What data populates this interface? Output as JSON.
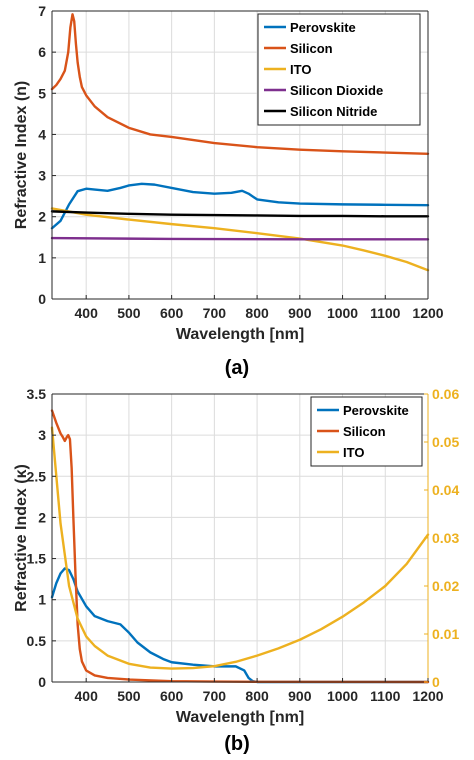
{
  "chart_data": [
    {
      "panel_label": "(a)",
      "type": "line",
      "xlabel": "Wavelength [nm]",
      "ylabel": "Refractive Index (n)",
      "xlim": [
        320,
        1200
      ],
      "ylim": [
        0,
        7
      ],
      "xticks": [
        "400",
        "500",
        "600",
        "700",
        "800",
        "900",
        "1000",
        "1100",
        "1200"
      ],
      "yticks": [
        "0",
        "1",
        "2",
        "3",
        "4",
        "5",
        "6",
        "7"
      ],
      "grid": true,
      "legend_position": "top-right",
      "series": [
        {
          "name": "Perovskite",
          "color": "#0072BD",
          "x": [
            320,
            340,
            360,
            380,
            400,
            420,
            450,
            480,
            500,
            530,
            560,
            600,
            650,
            700,
            740,
            765,
            780,
            800,
            850,
            900,
            1000,
            1100,
            1200
          ],
          "y": [
            1.72,
            1.9,
            2.3,
            2.62,
            2.68,
            2.66,
            2.63,
            2.7,
            2.76,
            2.8,
            2.78,
            2.7,
            2.6,
            2.56,
            2.58,
            2.63,
            2.56,
            2.42,
            2.35,
            2.32,
            2.3,
            2.29,
            2.28
          ]
        },
        {
          "name": "Silicon",
          "color": "#D95319",
          "x": [
            320,
            330,
            340,
            350,
            358,
            363,
            368,
            372,
            376,
            380,
            385,
            390,
            400,
            420,
            450,
            500,
            550,
            600,
            700,
            800,
            900,
            1000,
            1100,
            1200
          ],
          "y": [
            5.1,
            5.2,
            5.35,
            5.55,
            6.0,
            6.6,
            6.92,
            6.75,
            6.2,
            5.75,
            5.4,
            5.15,
            4.95,
            4.68,
            4.42,
            4.16,
            4.0,
            3.94,
            3.79,
            3.69,
            3.63,
            3.59,
            3.56,
            3.53
          ]
        },
        {
          "name": "ITO",
          "color": "#EDB120",
          "x": [
            320,
            400,
            500,
            600,
            700,
            800,
            900,
            1000,
            1050,
            1100,
            1150,
            1200
          ],
          "y": [
            2.2,
            2.05,
            1.93,
            1.82,
            1.72,
            1.6,
            1.47,
            1.3,
            1.18,
            1.05,
            0.9,
            0.7
          ]
        },
        {
          "name": "Silicon Dioxide",
          "color": "#7E2F8E",
          "x": [
            320,
            600,
            900,
            1200
          ],
          "y": [
            1.48,
            1.46,
            1.45,
            1.45
          ]
        },
        {
          "name": "Silicon Nitride",
          "color": "#000000",
          "x": [
            320,
            400,
            500,
            600,
            700,
            800,
            900,
            1000,
            1100,
            1200
          ],
          "y": [
            2.13,
            2.1,
            2.07,
            2.05,
            2.04,
            2.03,
            2.02,
            2.02,
            2.01,
            2.01
          ]
        }
      ]
    },
    {
      "panel_label": "(b)",
      "type": "line",
      "xlabel": "Wavelength [nm]",
      "ylabel": "Refractive Index (κ)",
      "xlim": [
        320,
        1200
      ],
      "ylim": [
        0,
        3.5
      ],
      "right_ylim": [
        0,
        0.06
      ],
      "right_axis_color": "#EDB120",
      "xticks": [
        "400",
        "500",
        "600",
        "700",
        "800",
        "900",
        "1000",
        "1100",
        "1200"
      ],
      "yticks": [
        "0",
        "0.5",
        "1",
        "1.5",
        "2",
        "2.5",
        "3",
        "3.5"
      ],
      "right_yticks": [
        "0",
        "0.01",
        "0.02",
        "0.03",
        "0.04",
        "0.05",
        "0.06"
      ],
      "grid": true,
      "legend_position": "top-right",
      "series": [
        {
          "name": "Perovskite",
          "color": "#0072BD",
          "axis": "left",
          "x": [
            320,
            330,
            340,
            350,
            360,
            370,
            380,
            400,
            420,
            450,
            480,
            500,
            520,
            550,
            580,
            600,
            650,
            700,
            750,
            770,
            780,
            790,
            800,
            1200
          ],
          "y": [
            1.03,
            1.2,
            1.32,
            1.38,
            1.36,
            1.25,
            1.1,
            0.92,
            0.8,
            0.74,
            0.7,
            0.6,
            0.48,
            0.36,
            0.28,
            0.24,
            0.21,
            0.19,
            0.19,
            0.14,
            0.05,
            0.01,
            0.0,
            0.0
          ]
        },
        {
          "name": "Silicon",
          "color": "#D95319",
          "axis": "left",
          "x": [
            320,
            330,
            340,
            345,
            350,
            355,
            358,
            362,
            366,
            370,
            375,
            380,
            385,
            390,
            400,
            420,
            450,
            500,
            600,
            700,
            800,
            1200
          ],
          "y": [
            3.3,
            3.15,
            3.02,
            2.98,
            2.93,
            2.98,
            3.0,
            2.95,
            2.6,
            2.0,
            1.3,
            0.7,
            0.4,
            0.25,
            0.14,
            0.08,
            0.05,
            0.03,
            0.01,
            0.005,
            0.002,
            0.0
          ]
        },
        {
          "name": "ITO",
          "color": "#EDB120",
          "axis": "right",
          "x": [
            320,
            340,
            360,
            380,
            400,
            420,
            450,
            500,
            550,
            600,
            650,
            700,
            750,
            800,
            850,
            900,
            950,
            1000,
            1050,
            1100,
            1150,
            1200
          ],
          "y": [
            0.053,
            0.033,
            0.02,
            0.0132,
            0.0095,
            0.0075,
            0.0055,
            0.0038,
            0.003,
            0.0028,
            0.0029,
            0.0033,
            0.0042,
            0.0055,
            0.007,
            0.0088,
            0.011,
            0.0136,
            0.0166,
            0.02,
            0.0246,
            0.0307
          ]
        }
      ]
    }
  ]
}
